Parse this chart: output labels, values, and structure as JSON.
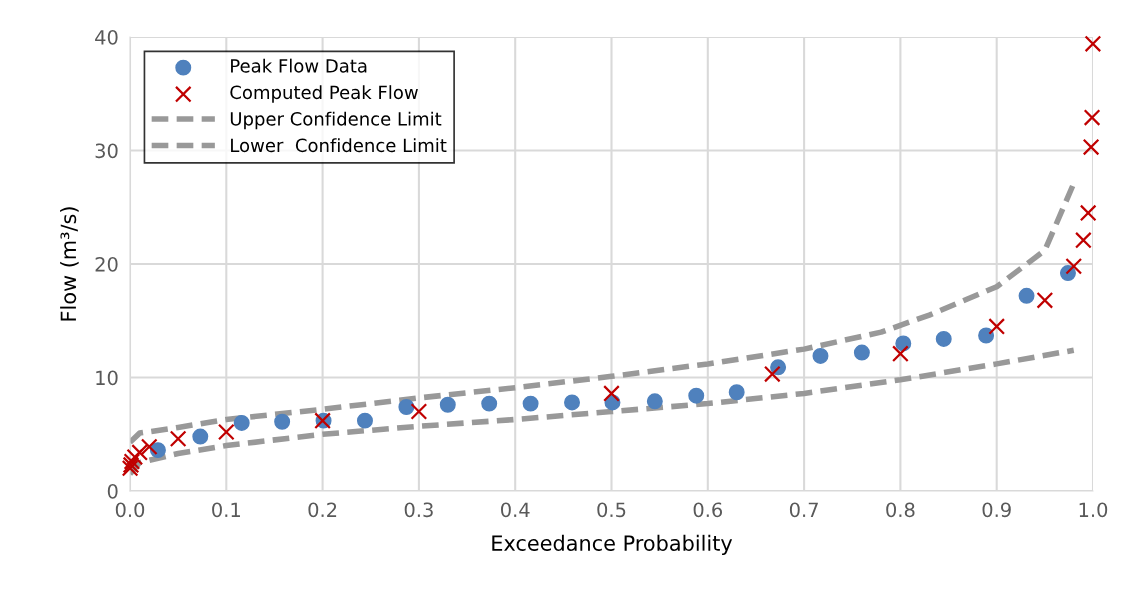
{
  "chart_data": {
    "type": "scatter",
    "xlabel": "Exceedance Probability",
    "ylabel": "Flow (m³/s)",
    "xlim": [
      0,
      1
    ],
    "ylim": [
      0,
      40
    ],
    "xticks": [
      {
        "value": 0,
        "label": "0.0"
      },
      0.1,
      0.2,
      0.3,
      0.4,
      0.5,
      0.6,
      0.7,
      0.8,
      0.9,
      {
        "value": 1,
        "label": "1.0"
      }
    ],
    "yticks": [
      0,
      10,
      20,
      30,
      40
    ],
    "grid": true,
    "legend": "top left",
    "series": [
      {
        "name": "Peak Flow Data",
        "marker": "circle",
        "color": "#4f81bd",
        "x": [
          0.029,
          0.073,
          0.116,
          0.158,
          0.201,
          0.244,
          0.287,
          0.33,
          0.373,
          0.416,
          0.459,
          0.501,
          0.545,
          0.588,
          0.63,
          0.673,
          0.717,
          0.76,
          0.803,
          0.845,
          0.889,
          0.931,
          0.974
        ],
        "values": [
          3.6,
          4.8,
          6.0,
          6.1,
          6.2,
          6.2,
          7.4,
          7.6,
          7.7,
          7.7,
          7.8,
          7.8,
          7.9,
          8.4,
          8.7,
          10.9,
          11.9,
          12.2,
          13.0,
          13.4,
          13.7,
          17.2,
          19.2
        ]
      },
      {
        "name": "Computed Peak Flow",
        "marker": "cross",
        "color": "#c00000",
        "x": [
          0.0001,
          0.001,
          0.002,
          0.005,
          0.01,
          0.02,
          0.05,
          0.1,
          0.2,
          0.3,
          0.5,
          0.667,
          0.8,
          0.9,
          0.95,
          0.98,
          0.99,
          0.995,
          0.998,
          0.999,
          0.9999
        ],
        "values": [
          2.0,
          2.3,
          2.6,
          3.0,
          3.4,
          3.9,
          4.6,
          5.2,
          6.2,
          7.0,
          8.6,
          10.3,
          12.1,
          14.5,
          16.8,
          19.8,
          22.1,
          24.5,
          30.3,
          32.9,
          39.4
        ]
      },
      {
        "name": "Upper Confidence Limit",
        "type": "line",
        "line_style": "dashed",
        "marker": "none",
        "color": "#999999",
        "x": [
          0.0,
          0.01,
          0.05,
          0.1,
          0.2,
          0.3,
          0.4,
          0.5,
          0.6,
          0.7,
          0.78,
          0.83,
          0.9,
          0.95,
          0.98
        ],
        "values": [
          4.3,
          5.1,
          5.6,
          6.3,
          7.2,
          8.2,
          9.1,
          10.1,
          11.2,
          12.5,
          14.0,
          15.5,
          18.0,
          21.2,
          27.1
        ]
      },
      {
        "name": "Lower  Confidence Limit",
        "type": "line",
        "line_style": "dashed",
        "marker": "none",
        "color": "#999999",
        "x": [
          0.0,
          0.01,
          0.05,
          0.1,
          0.2,
          0.3,
          0.4,
          0.5,
          0.6,
          0.7,
          0.8,
          0.9,
          0.98
        ],
        "values": [
          1.5,
          2.5,
          3.3,
          4.0,
          5.0,
          5.7,
          6.3,
          7.0,
          7.7,
          8.6,
          9.8,
          11.2,
          12.4
        ]
      }
    ]
  }
}
